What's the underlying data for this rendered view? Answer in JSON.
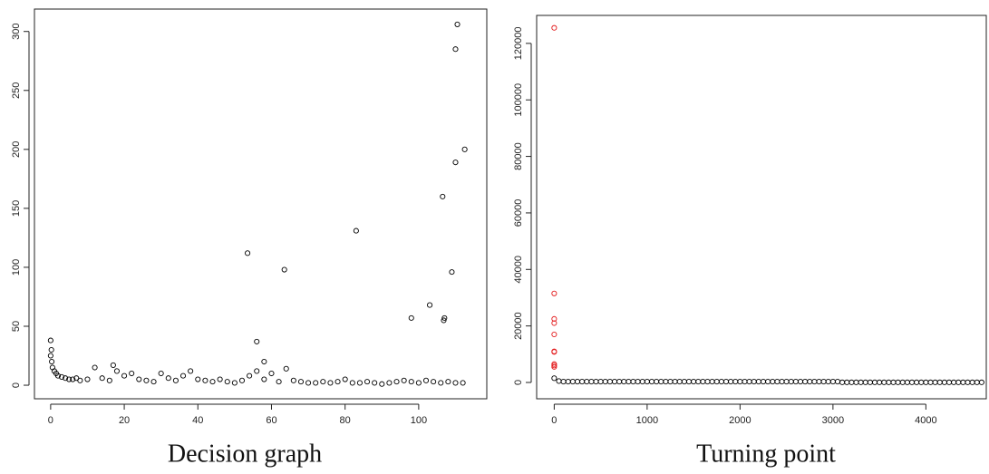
{
  "chart_data": [
    {
      "type": "scatter",
      "caption": "Decision graph",
      "xlim": [
        -4.4,
        118.5
      ],
      "ylim": [
        -11.5,
        319
      ],
      "xticks": [
        0,
        20,
        40,
        60,
        80,
        100
      ],
      "yticks": [
        0,
        50,
        100,
        150,
        200,
        250,
        300
      ],
      "series": [
        {
          "color": "#000000",
          "x": [
            0,
            0.3,
            0.5,
            1,
            1.5,
            2,
            3,
            4,
            5,
            6,
            7,
            8,
            10,
            12,
            14,
            16,
            18,
            20,
            22,
            24,
            26,
            28,
            30,
            32,
            34,
            36,
            38,
            40,
            42,
            44,
            46,
            48,
            50,
            52,
            54,
            56,
            58,
            60,
            62,
            64,
            66,
            68,
            70,
            72,
            74,
            76,
            78,
            80,
            82,
            84,
            86,
            88,
            90,
            92,
            94,
            96,
            98,
            100,
            102,
            104,
            106,
            108,
            110,
            110.5,
            110,
            112.5,
            110,
            106.5,
            83,
            53.5,
            63.5,
            109,
            103,
            98,
            107,
            106.8,
            56,
            0,
            0.2,
            58,
            17,
            112
          ],
          "y": [
            25,
            20,
            15,
            12,
            10,
            8,
            7,
            6,
            5,
            5,
            6,
            4,
            5,
            15,
            6,
            4,
            12,
            8,
            10,
            5,
            4,
            3,
            10,
            6,
            4,
            8,
            12,
            5,
            4,
            3,
            5,
            3,
            2,
            4,
            8,
            12,
            5,
            10,
            3,
            14,
            4,
            3,
            2,
            2,
            3,
            2,
            3,
            5,
            2,
            2,
            3,
            2,
            1,
            2,
            3,
            4,
            3,
            2,
            4,
            3,
            2,
            3,
            2,
            306,
            285,
            200,
            189,
            160,
            131,
            112,
            98,
            96,
            68,
            57,
            57,
            55,
            37,
            38,
            30,
            20,
            17,
            2
          ]
        }
      ]
    },
    {
      "type": "scatter",
      "caption": "Turning point",
      "xlim": [
        -189,
        4650
      ],
      "ylim": [
        -5775,
        129900
      ],
      "xticks": [
        0,
        1000,
        2000,
        3000,
        4000
      ],
      "yticks": [
        0,
        20000,
        40000,
        60000,
        80000,
        100000,
        120000
      ],
      "series": [
        {
          "color": "#000000",
          "x": [
            0,
            50,
            100,
            150,
            200,
            250,
            300,
            350,
            400,
            450,
            500,
            550,
            600,
            650,
            700,
            750,
            800,
            850,
            900,
            950,
            1000,
            1050,
            1100,
            1150,
            1200,
            1250,
            1300,
            1350,
            1400,
            1450,
            1500,
            1550,
            1600,
            1650,
            1700,
            1750,
            1800,
            1850,
            1900,
            1950,
            2000,
            2050,
            2100,
            2150,
            2200,
            2250,
            2300,
            2350,
            2400,
            2450,
            2500,
            2550,
            2600,
            2650,
            2700,
            2750,
            2800,
            2850,
            2900,
            2950,
            3000,
            3050,
            3100,
            3150,
            3200,
            3250,
            3300,
            3350,
            3400,
            3450,
            3500,
            3550,
            3600,
            3650,
            3700,
            3750,
            3800,
            3850,
            3900,
            3950,
            4000,
            4050,
            4100,
            4150,
            4200,
            4250,
            4300,
            4350,
            4400,
            4450,
            4500,
            4550,
            4600
          ],
          "y": [
            1500,
            500,
            300,
            300,
            300,
            300,
            300,
            300,
            300,
            300,
            300,
            300,
            300,
            300,
            300,
            300,
            300,
            300,
            300,
            300,
            300,
            300,
            300,
            300,
            300,
            300,
            300,
            300,
            300,
            300,
            300,
            300,
            300,
            300,
            300,
            300,
            300,
            300,
            300,
            300,
            300,
            300,
            300,
            300,
            300,
            300,
            300,
            300,
            300,
            300,
            300,
            300,
            300,
            300,
            300,
            300,
            300,
            300,
            300,
            300,
            300,
            300,
            50,
            50,
            50,
            50,
            50,
            50,
            50,
            50,
            50,
            50,
            50,
            50,
            50,
            50,
            50,
            50,
            50,
            50,
            50,
            50,
            50,
            50,
            50,
            50,
            50,
            50,
            50,
            50,
            50,
            50,
            50
          ]
        },
        {
          "color": "#e31a1c",
          "x": [
            0,
            0,
            0,
            0,
            0,
            0,
            0,
            0,
            0,
            0
          ],
          "y": [
            125500,
            31500,
            22500,
            21000,
            17000,
            11000,
            10800,
            6500,
            6000,
            5500
          ]
        }
      ]
    }
  ]
}
